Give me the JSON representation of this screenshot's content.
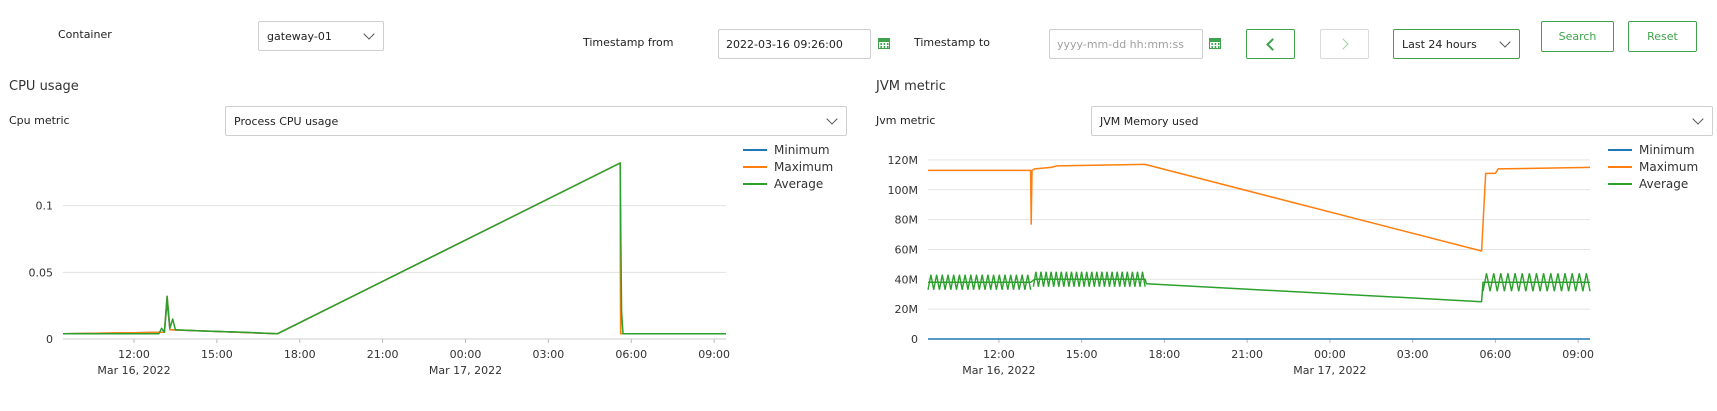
{
  "filters": {
    "container_label": "Container",
    "container_value": "gateway-01",
    "timestamp_from_label": "Timestamp from",
    "timestamp_from_value": "2022-03-16 09:26:00",
    "timestamp_to_label": "Timestamp to",
    "timestamp_to_placeholder": "yyyy-mm-dd hh:mm:ss",
    "range_value": "Last 24 hours",
    "search_label": "Search",
    "reset_label": "Reset"
  },
  "cpu_panel": {
    "title": "CPU usage",
    "metric_label": "Cpu metric",
    "metric_value": "Process CPU usage"
  },
  "jvm_panel": {
    "title": "JVM metric",
    "metric_label": "Jvm metric",
    "metric_value": "JVM Memory used"
  },
  "colors": {
    "accent": "#3fa34d",
    "minimum": "#1f77b4",
    "maximum": "#ff7f0e",
    "average": "#2ca02c"
  },
  "chart_data": [
    {
      "type": "line",
      "x_unit": "hours since 2022-03-16 00:00",
      "xlim": [
        9.43,
        33.43
      ],
      "ylim": [
        0,
        0.135
      ],
      "y_ticks": [
        0,
        0.05,
        0.1
      ],
      "y_tick_labels": [
        "0",
        "0.05",
        "0.1"
      ],
      "x_ticks": [
        12,
        15,
        18,
        21,
        24,
        27,
        30,
        33
      ],
      "x_tick_labels": [
        "12:00",
        "15:00",
        "18:00",
        "21:00",
        "00:00",
        "03:00",
        "06:00",
        "09:00"
      ],
      "x_date_labels": [
        {
          "x": 12,
          "label": "Mar 16, 2022"
        },
        {
          "x": 24,
          "label": "Mar 17, 2022"
        }
      ],
      "grid": "horizontal",
      "legend": "top-right",
      "series": [
        {
          "name": "Minimum",
          "color": "#1f77b4",
          "x": [
            9.43,
            13.1,
            13.2,
            13.3,
            17.2,
            29.6,
            29.62,
            29.7,
            33.43
          ],
          "y": [
            0.004,
            0.005,
            0.028,
            0.007,
            0.004,
            0.132,
            0.004,
            0.004,
            0.004
          ]
        },
        {
          "name": "Maximum",
          "color": "#ff7f0e",
          "x": [
            9.43,
            13.1,
            13.2,
            13.3,
            17.2,
            29.6,
            29.62,
            29.7,
            33.43
          ],
          "y": [
            0.004,
            0.005,
            0.032,
            0.007,
            0.004,
            0.132,
            0.004,
            0.004,
            0.004
          ]
        },
        {
          "name": "Average",
          "color": "#2ca02c",
          "x": [
            9.43,
            12.9,
            13.0,
            13.1,
            13.2,
            13.3,
            13.4,
            13.5,
            14.5,
            16.0,
            17.2,
            29.6,
            29.62,
            29.65,
            29.7,
            33.43
          ],
          "y": [
            0.004,
            0.004,
            0.008,
            0.005,
            0.032,
            0.008,
            0.015,
            0.007,
            0.006,
            0.005,
            0.004,
            0.132,
            0.085,
            0.02,
            0.004,
            0.004
          ]
        }
      ]
    },
    {
      "type": "line",
      "x_unit": "hours since 2022-03-16 00:00",
      "xlim": [
        9.43,
        33.43
      ],
      "ylim": [
        0,
        130
      ],
      "y_unit": "M",
      "y_ticks": [
        0,
        20,
        40,
        60,
        80,
        100,
        120
      ],
      "y_tick_labels": [
        "0",
        "20M",
        "40M",
        "60M",
        "80M",
        "100M",
        "120M"
      ],
      "x_ticks": [
        12,
        15,
        18,
        21,
        24,
        27,
        30,
        33
      ],
      "x_tick_labels": [
        "12:00",
        "15:00",
        "18:00",
        "21:00",
        "00:00",
        "03:00",
        "06:00",
        "09:00"
      ],
      "x_date_labels": [
        {
          "x": 12,
          "label": "Mar 16, 2022"
        },
        {
          "x": 24,
          "label": "Mar 17, 2022"
        }
      ],
      "grid": "horizontal",
      "legend": "top-right",
      "series": [
        {
          "name": "Minimum",
          "color": "#1f77b4",
          "x": [
            9.43,
            33.43
          ],
          "y": [
            0,
            0
          ]
        },
        {
          "name": "Maximum",
          "color": "#ff7f0e",
          "x": [
            9.43,
            13.15,
            13.17,
            13.2,
            13.3,
            13.9,
            14.1,
            17.3,
            29.5,
            29.6,
            29.65,
            29.7,
            30.0,
            30.1,
            33.43
          ],
          "y": [
            113,
            113,
            77,
            113,
            114,
            115,
            116,
            117,
            59,
            95,
            111,
            111,
            111,
            114,
            115
          ]
        },
        {
          "name": "Average",
          "color": "#2ca02c",
          "x": [
            9.43,
            13.15,
            13.3,
            17.3,
            17.35,
            29.5,
            29.55,
            29.7,
            33.43
          ],
          "y": [
            38,
            38,
            40,
            40,
            37,
            25,
            38,
            38,
            38
          ]
        }
      ]
    }
  ]
}
